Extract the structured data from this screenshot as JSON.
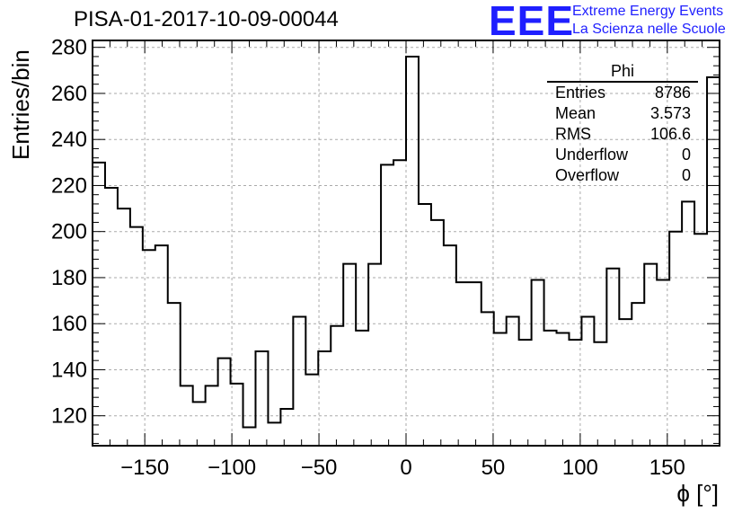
{
  "title": "PISA-01-2017-10-09-00044",
  "logo": "EEE",
  "org_line1": "Extreme Energy Events",
  "org_line2": "La Scienza nelle Scuole",
  "brand_color": "#1f1fff",
  "stats": {
    "name": "Phi",
    "rows": [
      {
        "label": "Entries",
        "value": "8786"
      },
      {
        "label": "Mean",
        "value": "3.573"
      },
      {
        "label": "RMS",
        "value": "106.6"
      },
      {
        "label": "Underflow",
        "value": "0"
      },
      {
        "label": "Overflow",
        "value": "0"
      }
    ]
  },
  "chart_data": {
    "type": "bar",
    "style": "step-histogram",
    "xlabel": "ϕ [°]",
    "ylabel": "Entries/bin",
    "xlim": [
      -180,
      180
    ],
    "ylim": [
      107,
      283
    ],
    "bin_width": 7.2,
    "x_ticks": [
      -150,
      -100,
      -50,
      0,
      50,
      100,
      150
    ],
    "y_ticks": [
      120,
      140,
      160,
      180,
      200,
      220,
      240,
      260,
      280
    ],
    "grid": true,
    "values": [
      230,
      219,
      210,
      202,
      192,
      194,
      169,
      133,
      126,
      133,
      145,
      134,
      115,
      148,
      117,
      123,
      163,
      138,
      148,
      159,
      186,
      157,
      186,
      229,
      231,
      276,
      212,
      205,
      194,
      178,
      178,
      165,
      156,
      163,
      153,
      179,
      157,
      156,
      153,
      163,
      152,
      184,
      162,
      169,
      186,
      179,
      200,
      213,
      199,
      267
    ]
  }
}
